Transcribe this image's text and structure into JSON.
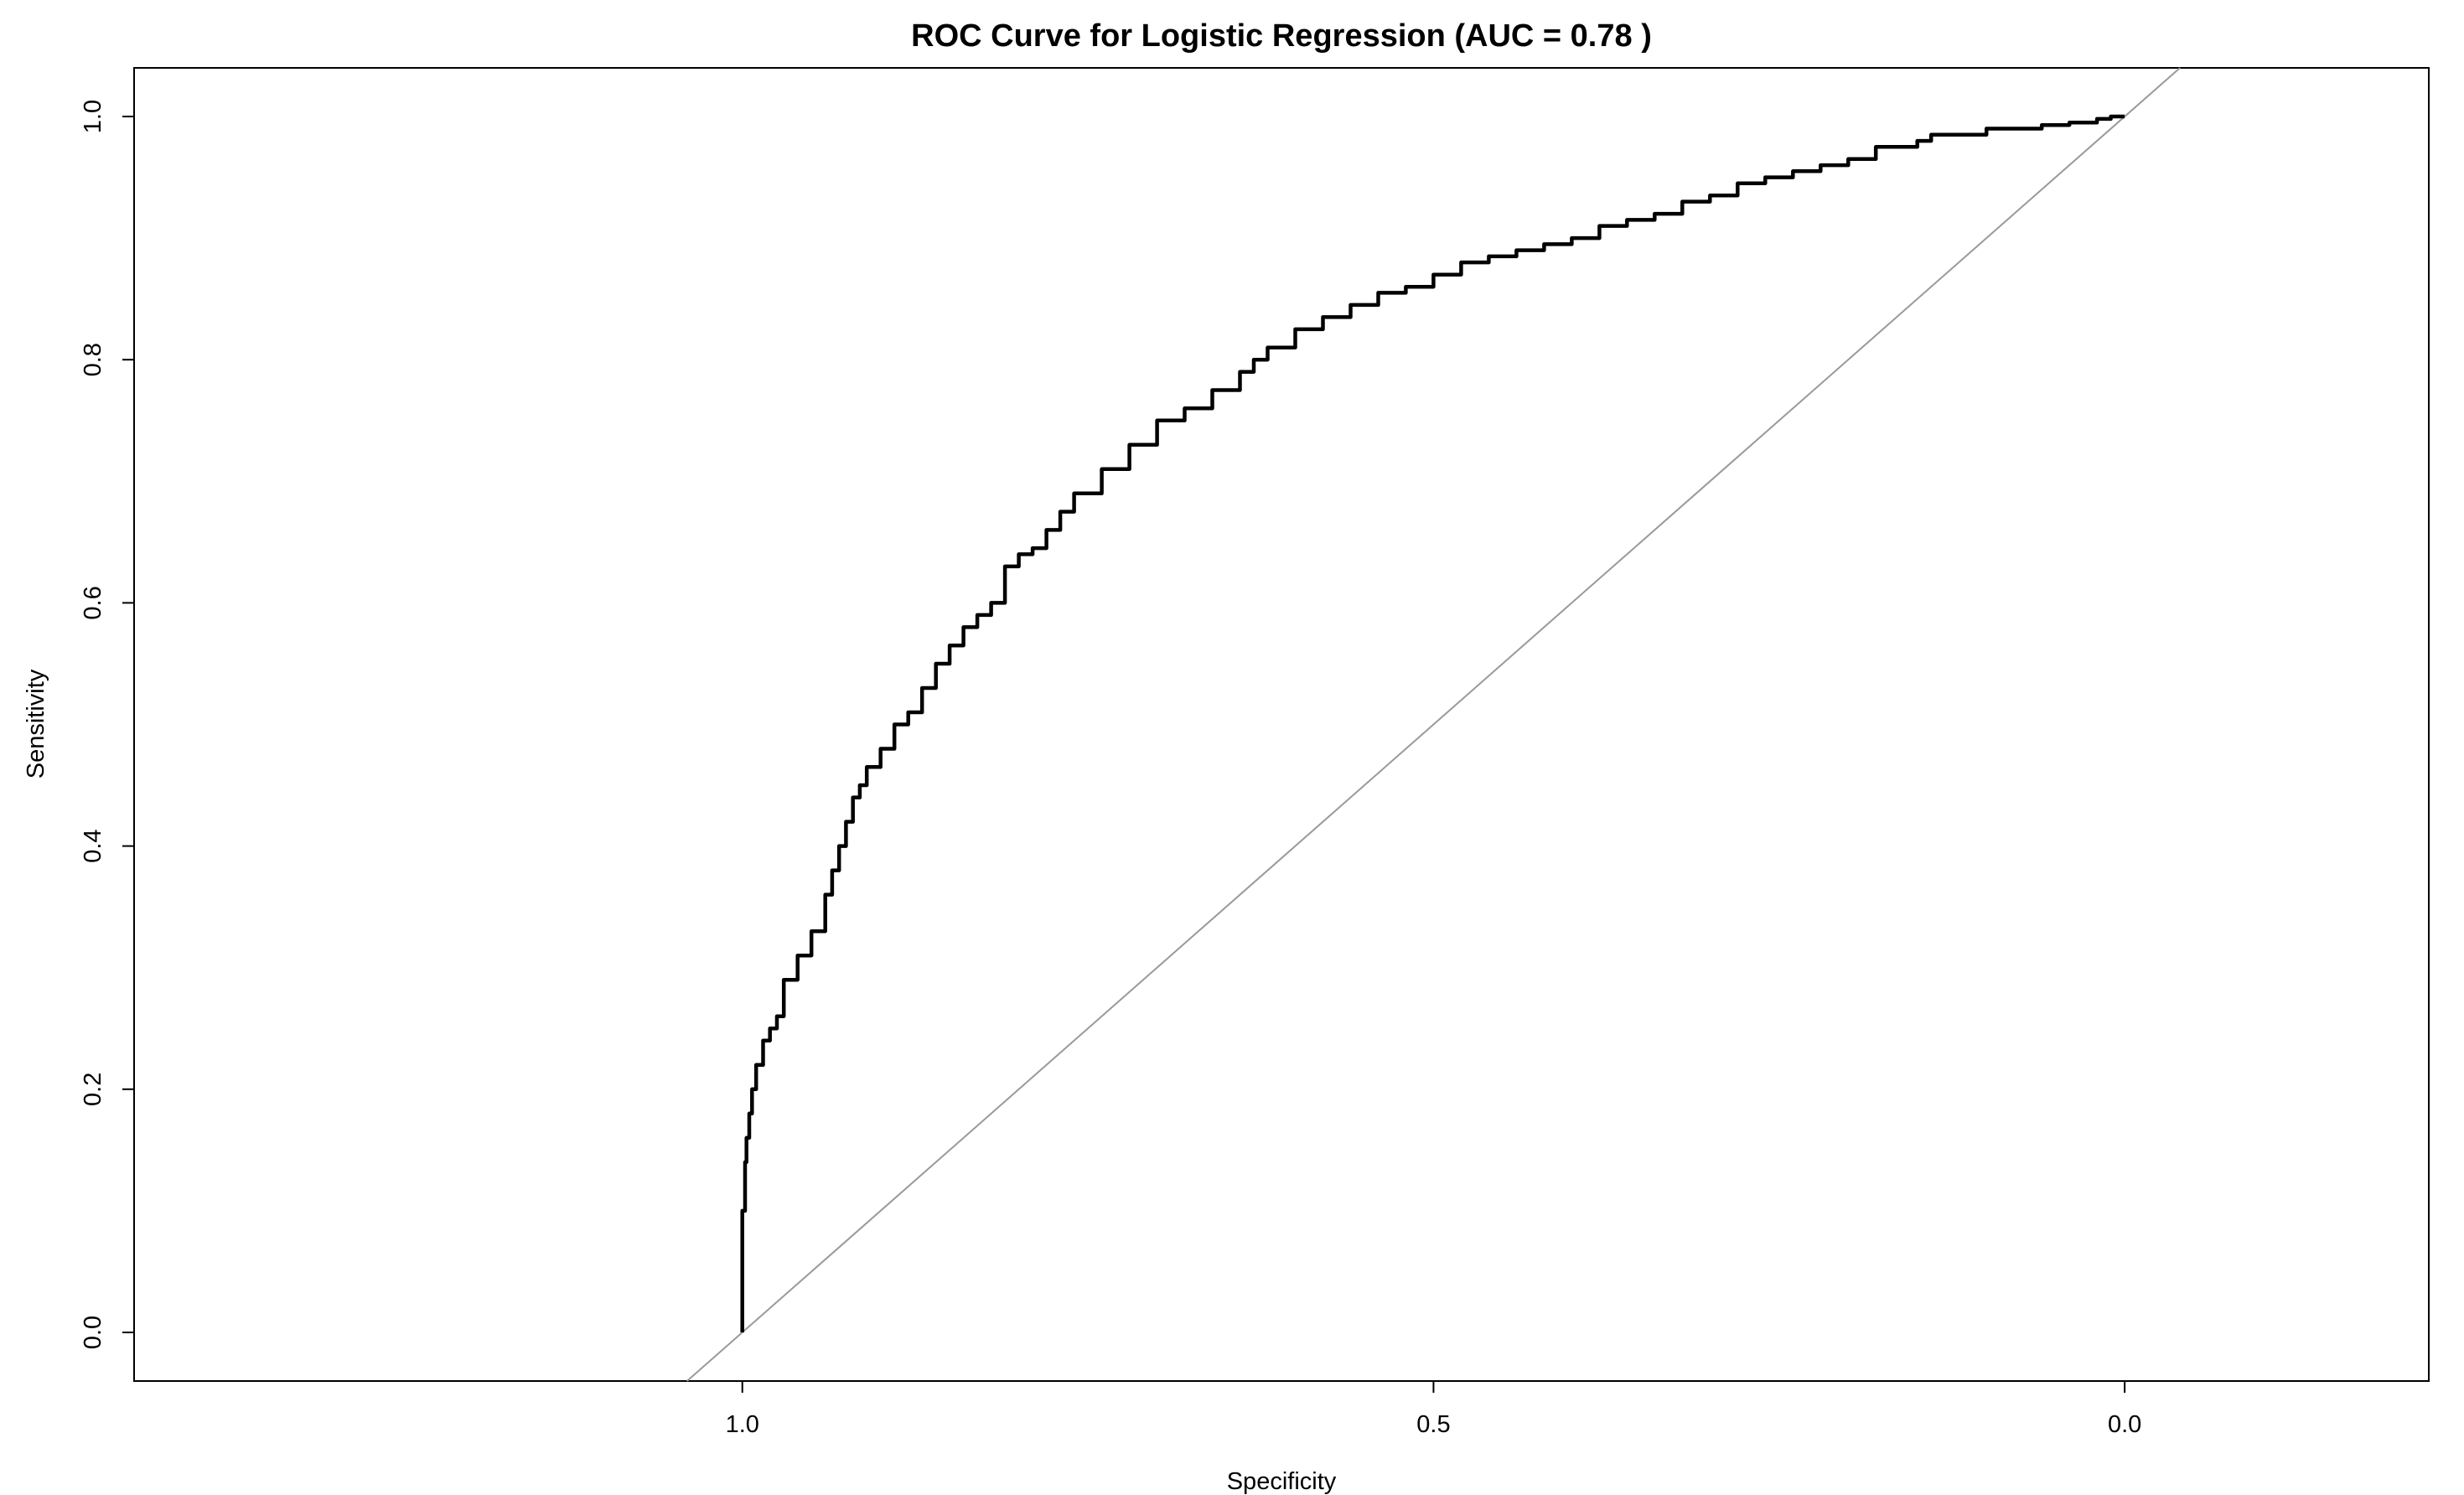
{
  "chart_data": {
    "type": "line",
    "title": "ROC Curve for Logistic Regression (AUC = 0.78 )",
    "xlabel": "Specificity",
    "ylabel": "Sensitivity",
    "x_reversed": true,
    "xlim": [
      1.44,
      -0.22
    ],
    "ylim": [
      -0.04,
      1.04
    ],
    "xticks": [
      1.0,
      0.5,
      0.0
    ],
    "xtick_labels": [
      "1.0",
      "0.5",
      "0.0"
    ],
    "yticks": [
      0.0,
      0.2,
      0.4,
      0.6,
      0.8,
      1.0
    ],
    "ytick_labels": [
      "0.0",
      "0.2",
      "0.4",
      "0.6",
      "0.8",
      "1.0"
    ],
    "grid": false,
    "legend": "none",
    "series": [
      {
        "role": "roc-curve",
        "color": "#000000",
        "x": [
          1.0,
          1.0,
          0.998,
          0.997,
          0.995,
          0.993,
          0.99,
          0.985,
          0.98,
          0.975,
          0.97,
          0.96,
          0.95,
          0.94,
          0.935,
          0.93,
          0.925,
          0.92,
          0.915,
          0.91,
          0.9,
          0.89,
          0.88,
          0.87,
          0.86,
          0.85,
          0.84,
          0.83,
          0.82,
          0.81,
          0.8,
          0.79,
          0.78,
          0.77,
          0.76,
          0.74,
          0.72,
          0.7,
          0.68,
          0.66,
          0.64,
          0.63,
          0.62,
          0.6,
          0.58,
          0.56,
          0.54,
          0.52,
          0.5,
          0.48,
          0.46,
          0.44,
          0.42,
          0.4,
          0.38,
          0.36,
          0.34,
          0.32,
          0.3,
          0.28,
          0.26,
          0.24,
          0.22,
          0.2,
          0.18,
          0.15,
          0.14,
          0.12,
          0.1,
          0.08,
          0.06,
          0.04,
          0.02,
          0.01,
          0.0
        ],
        "y": [
          0.0,
          0.05,
          0.1,
          0.14,
          0.16,
          0.18,
          0.2,
          0.22,
          0.24,
          0.25,
          0.26,
          0.29,
          0.31,
          0.33,
          0.36,
          0.38,
          0.4,
          0.42,
          0.44,
          0.45,
          0.465,
          0.48,
          0.5,
          0.51,
          0.53,
          0.55,
          0.565,
          0.58,
          0.59,
          0.6,
          0.63,
          0.64,
          0.645,
          0.66,
          0.675,
          0.69,
          0.71,
          0.73,
          0.75,
          0.76,
          0.775,
          0.79,
          0.8,
          0.81,
          0.825,
          0.835,
          0.845,
          0.855,
          0.86,
          0.87,
          0.88,
          0.885,
          0.89,
          0.895,
          0.9,
          0.91,
          0.915,
          0.92,
          0.93,
          0.935,
          0.945,
          0.95,
          0.955,
          0.96,
          0.965,
          0.975,
          0.98,
          0.985,
          0.985,
          0.99,
          0.99,
          0.993,
          0.995,
          0.998,
          1.0
        ]
      },
      {
        "role": "reference-diagonal",
        "color": "#999999",
        "x": [
          1.04,
          -0.04
        ],
        "y": [
          -0.04,
          1.04
        ]
      }
    ]
  }
}
